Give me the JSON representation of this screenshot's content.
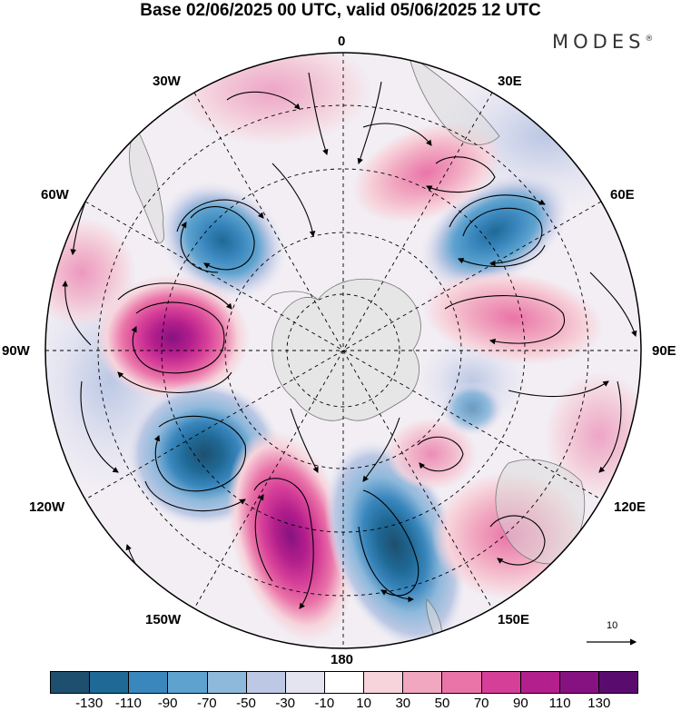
{
  "title": "Base 02/06/2025 00 UTC, valid 05/06/2025 12 UTC",
  "brand": "MODES",
  "brand_mark": "®",
  "longitude_labels": {
    "top": "0",
    "top_left": "30W",
    "top_right": "30E",
    "upper_left": "60W",
    "upper_right": "60E",
    "left": "90W",
    "right": "90E",
    "lower_left": "120W",
    "lower_right": "120E",
    "bottom_left": "150W",
    "bottom_right": "150E",
    "bottom": "180"
  },
  "reference_vector_label": "10",
  "colorbar": {
    "ticks": [
      "-130",
      "-110",
      "-90",
      "-70",
      "-50",
      "-30",
      "-10",
      "10",
      "30",
      "50",
      "70",
      "90",
      "110",
      "130"
    ],
    "colors": [
      "#1e4f6e",
      "#1f6996",
      "#3a87be",
      "#5ea3cf",
      "#8fb9db",
      "#bcc8e4",
      "#e4e4f1",
      "#ffffff",
      "#f7d4dc",
      "#f1a7c0",
      "#ea74a8",
      "#d63f98",
      "#b31f8c",
      "#861281",
      "#5a0c6e"
    ]
  },
  "map_features": {
    "projection": "south polar stereographic",
    "graticule": "dashed",
    "continent_fill": "#e6e6e6",
    "anomaly_centers": [
      {
        "lon_label": "45W",
        "sign": "negative",
        "value": -60
      },
      {
        "lon_label": "55E",
        "sign": "negative",
        "value": -70
      },
      {
        "lon_label": "25E",
        "sign": "positive",
        "value": 50
      },
      {
        "lon_label": "85W",
        "sign": "positive",
        "value": 100
      },
      {
        "lon_label": "90E",
        "sign": "positive",
        "value": 60
      },
      {
        "lon_label": "125W",
        "sign": "negative",
        "value": -120
      },
      {
        "lon_label": "155W",
        "sign": "positive",
        "value": 100
      },
      {
        "lon_label": "160E",
        "sign": "negative",
        "value": -90
      },
      {
        "lon_label": "125E",
        "sign": "positive",
        "value": 50
      }
    ]
  }
}
